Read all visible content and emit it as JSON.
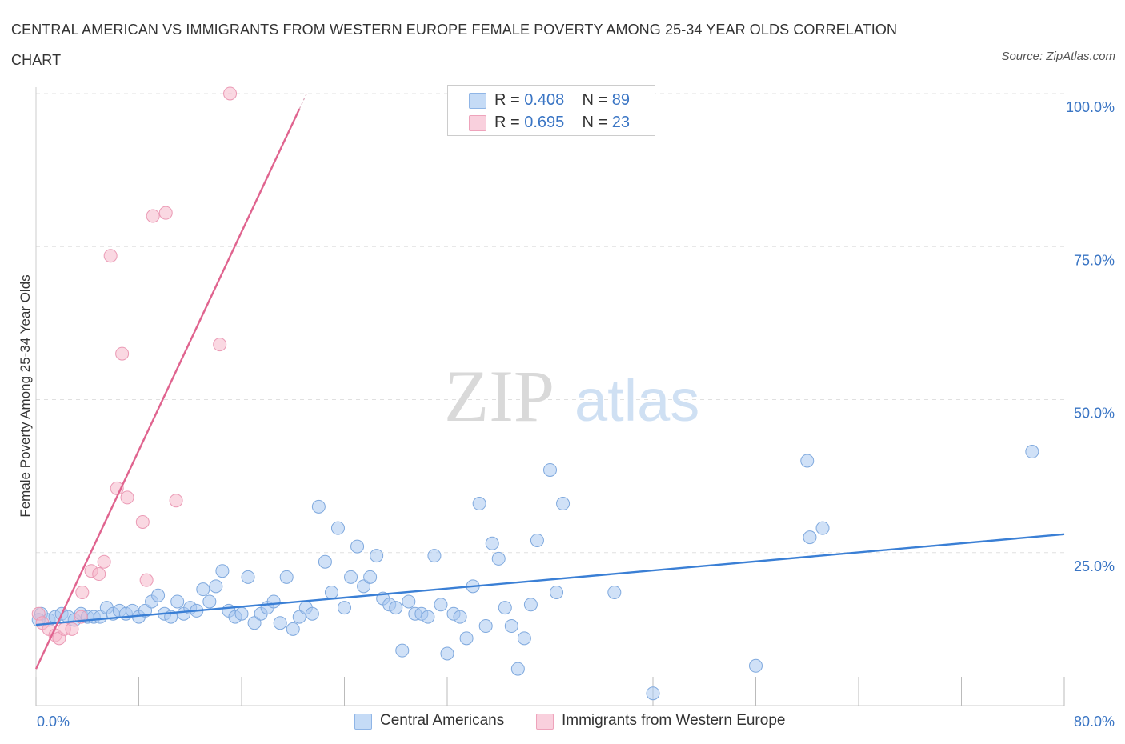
{
  "title": "CENTRAL AMERICAN VS IMMIGRANTS FROM WESTERN EUROPE FEMALE POVERTY AMONG 25-34 YEAR OLDS CORRELATION CHART",
  "source": "Source: ZipAtlas.com",
  "watermark": {
    "zip": "ZIP",
    "atlas": "atlas"
  },
  "stats": [
    {
      "r_label": "R =",
      "r": "0.408",
      "n_label": "N =",
      "n": "89",
      "color": "#a9c8f0"
    },
    {
      "r_label": "R =",
      "r": "0.695",
      "n_label": "N =",
      "n": "23",
      "color": "#f5b8cb"
    }
  ],
  "legend": [
    {
      "label": "Central Americans",
      "color": "#a9c8f0"
    },
    {
      "label": "Immigrants from Western Europe",
      "color": "#f5b8cb"
    }
  ],
  "colors": {
    "blue": "#3a7fd5",
    "pink": "#e0648f",
    "axis_text": "#3a75c4",
    "grid": "#e0e0e0"
  },
  "chart_data": {
    "type": "scatter",
    "title": "CENTRAL AMERICAN VS IMMIGRANTS FROM WESTERN EUROPE FEMALE POVERTY AMONG 25-34 YEAR OLDS CORRELATION CHART",
    "xlabel": "",
    "ylabel": "Female Poverty Among 25-34 Year Olds",
    "xlim": [
      0,
      80
    ],
    "ylim": [
      0,
      100
    ],
    "x_tick_labels": [
      "0.0%",
      "80.0%"
    ],
    "y_tick_labels": [
      "100.0%",
      "75.0%",
      "50.0%",
      "25.0%"
    ],
    "y_ticks": [
      100,
      75,
      50,
      25
    ],
    "grid": true,
    "legend_position": "bottom",
    "series": [
      {
        "name": "Central Americans",
        "color": "#a9c8f0",
        "trend": {
          "x": [
            0,
            80
          ],
          "y": [
            13.2,
            28.0
          ]
        },
        "points": [
          [
            0.4,
            15.0
          ],
          [
            1.0,
            14.0
          ],
          [
            1.5,
            14.5
          ],
          [
            2.0,
            15.0
          ],
          [
            2.5,
            14.5
          ],
          [
            3.0,
            14.0
          ],
          [
            3.5,
            15.0
          ],
          [
            4.0,
            14.5
          ],
          [
            4.5,
            14.5
          ],
          [
            5.0,
            14.5
          ],
          [
            5.5,
            16.0
          ],
          [
            6.0,
            15.0
          ],
          [
            6.5,
            15.5
          ],
          [
            7.0,
            15.0
          ],
          [
            7.5,
            15.5
          ],
          [
            8.0,
            14.5
          ],
          [
            8.5,
            15.5
          ],
          [
            9.0,
            17.0
          ],
          [
            9.5,
            18.0
          ],
          [
            10.0,
            15.0
          ],
          [
            10.5,
            14.5
          ],
          [
            11.0,
            17.0
          ],
          [
            11.5,
            15.0
          ],
          [
            12.0,
            16.0
          ],
          [
            12.5,
            15.5
          ],
          [
            13.0,
            19.0
          ],
          [
            13.5,
            17.0
          ],
          [
            14.0,
            19.5
          ],
          [
            14.5,
            22.0
          ],
          [
            15.0,
            15.5
          ],
          [
            15.5,
            14.5
          ],
          [
            16.0,
            15.0
          ],
          [
            16.5,
            21.0
          ],
          [
            17.0,
            13.5
          ],
          [
            17.5,
            15.0
          ],
          [
            18.0,
            16.0
          ],
          [
            18.5,
            17.0
          ],
          [
            19.0,
            13.5
          ],
          [
            19.5,
            21.0
          ],
          [
            20.0,
            12.5
          ],
          [
            20.5,
            14.5
          ],
          [
            21.0,
            16.0
          ],
          [
            21.5,
            15.0
          ],
          [
            22.0,
            32.5
          ],
          [
            22.5,
            23.5
          ],
          [
            23.0,
            18.5
          ],
          [
            23.5,
            29.0
          ],
          [
            24.0,
            16.0
          ],
          [
            24.5,
            21.0
          ],
          [
            25.0,
            26.0
          ],
          [
            25.5,
            19.5
          ],
          [
            26.0,
            21.0
          ],
          [
            26.5,
            24.5
          ],
          [
            27.0,
            17.5
          ],
          [
            27.5,
            16.5
          ],
          [
            28.0,
            16.0
          ],
          [
            28.5,
            9.0
          ],
          [
            29.0,
            17.0
          ],
          [
            29.5,
            15.0
          ],
          [
            30.0,
            15.0
          ],
          [
            30.5,
            14.5
          ],
          [
            31.0,
            24.5
          ],
          [
            31.5,
            16.5
          ],
          [
            32.0,
            8.5
          ],
          [
            32.5,
            15.0
          ],
          [
            33.0,
            14.5
          ],
          [
            33.5,
            11.0
          ],
          [
            34.0,
            19.5
          ],
          [
            34.5,
            33.0
          ],
          [
            35.0,
            13.0
          ],
          [
            35.5,
            26.5
          ],
          [
            36.0,
            24.0
          ],
          [
            36.5,
            16.0
          ],
          [
            37.0,
            13.0
          ],
          [
            37.5,
            6.0
          ],
          [
            38.0,
            11.0
          ],
          [
            38.5,
            16.5
          ],
          [
            39.0,
            27.0
          ],
          [
            40.0,
            38.5
          ],
          [
            40.5,
            18.5
          ],
          [
            41.0,
            33.0
          ],
          [
            45.0,
            18.5
          ],
          [
            48.0,
            2.0
          ],
          [
            56.0,
            6.5
          ],
          [
            60.0,
            40.0
          ],
          [
            60.2,
            27.5
          ],
          [
            61.2,
            29.0
          ],
          [
            77.5,
            41.5
          ],
          [
            0.2,
            14.0
          ]
        ]
      },
      {
        "name": "Immigrants from Western Europe",
        "color": "#f5b8cb",
        "trend": {
          "x": [
            0,
            20.5
          ],
          "y": [
            6.0,
            97.5
          ]
        },
        "points": [
          [
            0.2,
            15.0
          ],
          [
            0.5,
            13.5
          ],
          [
            1.0,
            12.5
          ],
          [
            1.5,
            11.5
          ],
          [
            1.8,
            11.0
          ],
          [
            2.2,
            12.5
          ],
          [
            2.8,
            12.5
          ],
          [
            3.5,
            14.5
          ],
          [
            3.6,
            18.5
          ],
          [
            4.3,
            22.0
          ],
          [
            4.9,
            21.5
          ],
          [
            5.3,
            23.5
          ],
          [
            5.8,
            73.5
          ],
          [
            6.3,
            35.5
          ],
          [
            6.7,
            57.5
          ],
          [
            7.1,
            34.0
          ],
          [
            8.3,
            30.0
          ],
          [
            8.6,
            20.5
          ],
          [
            9.1,
            80.0
          ],
          [
            10.1,
            80.5
          ],
          [
            10.9,
            33.5
          ],
          [
            14.3,
            59.0
          ],
          [
            15.1,
            100.0
          ]
        ]
      }
    ]
  }
}
